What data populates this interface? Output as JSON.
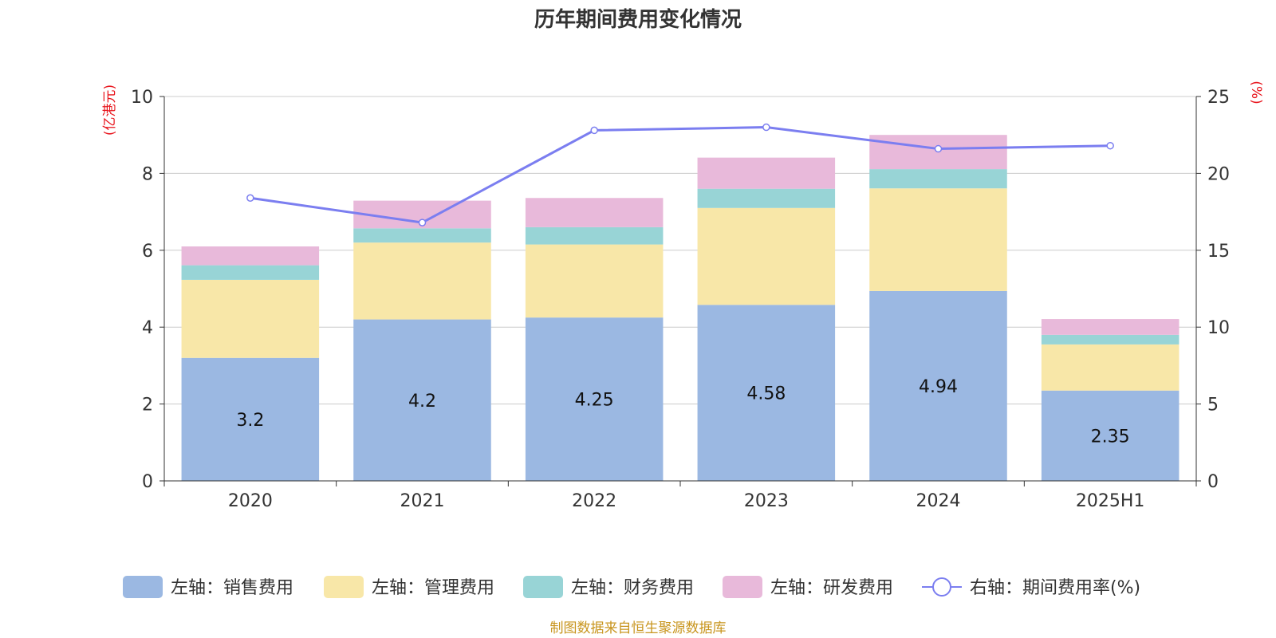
{
  "chart_data": {
    "type": "bar",
    "title": "历年期间费用变化情况",
    "categories": [
      "2020",
      "2021",
      "2022",
      "2023",
      "2024",
      "2025H1"
    ],
    "left_axis": {
      "unit": "(亿港元)",
      "ylim": [
        0,
        10
      ],
      "ticks": [
        0,
        2,
        4,
        6,
        8,
        10
      ]
    },
    "right_axis": {
      "unit": "(%)",
      "ylim": [
        0,
        25
      ],
      "ticks": [
        0,
        5,
        10,
        15,
        20,
        25
      ]
    },
    "series": [
      {
        "name": "左轴：销售费用",
        "type": "bar",
        "axis": "left",
        "color": "#9bb8e2",
        "values": [
          3.2,
          4.2,
          4.25,
          4.58,
          4.94,
          2.35
        ],
        "labels": [
          "3.2",
          "4.2",
          "4.25",
          "4.58",
          "4.94",
          "2.35"
        ]
      },
      {
        "name": "左轴：管理费用",
        "type": "bar",
        "axis": "left",
        "color": "#f8e7a8",
        "values": [
          2.03,
          2.0,
          1.9,
          2.52,
          2.67,
          1.2
        ]
      },
      {
        "name": "左轴：财务费用",
        "type": "bar",
        "axis": "left",
        "color": "#98d4d6",
        "values": [
          0.38,
          0.37,
          0.45,
          0.5,
          0.5,
          0.25
        ]
      },
      {
        "name": "左轴：研发费用",
        "type": "bar",
        "axis": "left",
        "color": "#e8b9da",
        "values": [
          0.49,
          0.72,
          0.76,
          0.81,
          0.89,
          0.41
        ]
      },
      {
        "name": "右轴：期间费用率(%)",
        "type": "line",
        "axis": "right",
        "color": "#7b7ef0",
        "values": [
          18.4,
          16.8,
          22.8,
          23.0,
          21.6,
          21.8
        ]
      }
    ],
    "legend_position": "bottom-center",
    "grid": true
  },
  "source": "制图数据来自恒生聚源数据库"
}
